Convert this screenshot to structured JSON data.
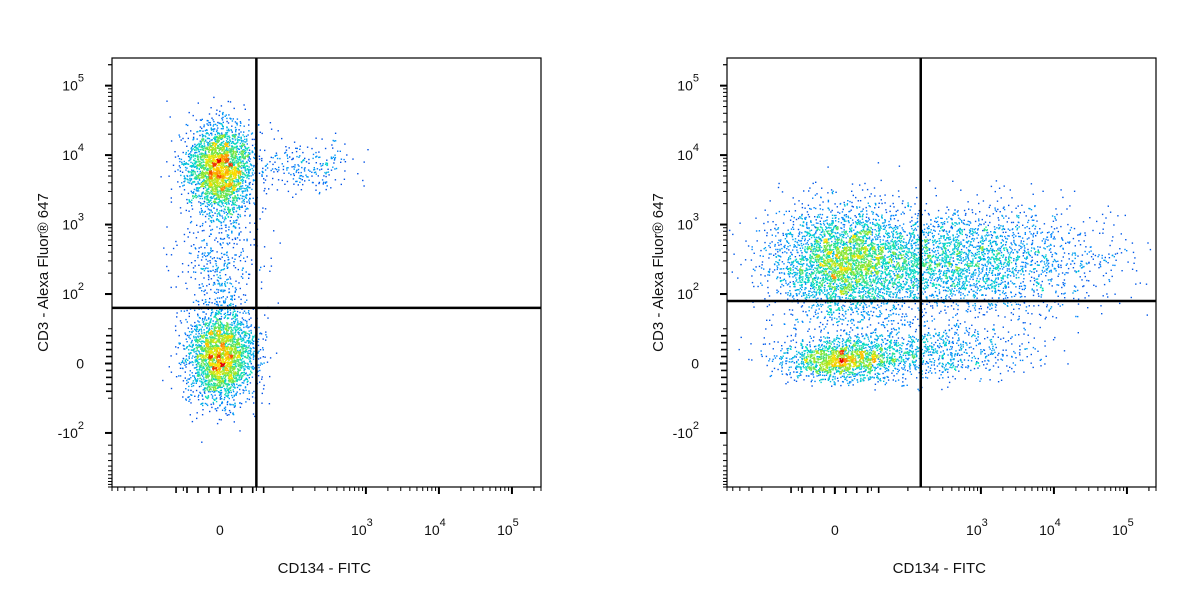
{
  "chart_data": [
    {
      "type": "scatter",
      "title": "",
      "xlabel": "CD134 - FITC",
      "ylabel": "CD3 - Alexa Fluor® 647",
      "x_scale": "biexponential",
      "y_scale": "biexponential",
      "xlim": [
        -300,
        250000
      ],
      "ylim": [
        -600,
        250000
      ],
      "x_ticks": [
        {
          "value": 0,
          "base": "0",
          "exp": ""
        },
        {
          "value": 1000,
          "base": "10",
          "exp": "3"
        },
        {
          "value": 10000,
          "base": "10",
          "exp": "4"
        },
        {
          "value": 100000,
          "base": "10",
          "exp": "5"
        }
      ],
      "y_ticks": [
        {
          "value": 100000,
          "base": "10",
          "exp": "5"
        },
        {
          "value": 10000,
          "base": "10",
          "exp": "4"
        },
        {
          "value": 1000,
          "base": "10",
          "exp": "3"
        },
        {
          "value": 100,
          "base": "10",
          "exp": "2"
        },
        {
          "value": 0,
          "base": "0",
          "exp": ""
        },
        {
          "value": -100,
          "base": "-10",
          "exp": "2"
        }
      ],
      "quadrant_gate": {
        "x": 50,
        "y": 80
      },
      "populations": [
        {
          "x": 0,
          "y": 6500,
          "spread": "dense"
        },
        {
          "x": 0,
          "y": 10,
          "spread": "dense"
        },
        {
          "x": 0,
          "y": 300,
          "spread": "sparse"
        },
        {
          "x": 150,
          "y": 7000,
          "spread": "sparse"
        }
      ],
      "grid": false,
      "legend": "none"
    },
    {
      "type": "scatter",
      "title": "",
      "xlabel": "CD134 - FITC",
      "ylabel": "CD3 - Alexa Fluor® 647",
      "x_scale": "biexponential",
      "y_scale": "biexponential",
      "xlim": [
        -300,
        250000
      ],
      "ylim": [
        -600,
        250000
      ],
      "x_ticks": [
        {
          "value": 0,
          "base": "0",
          "exp": ""
        },
        {
          "value": 1000,
          "base": "10",
          "exp": "3"
        },
        {
          "value": 10000,
          "base": "10",
          "exp": "4"
        },
        {
          "value": 100000,
          "base": "10",
          "exp": "5"
        }
      ],
      "y_ticks": [
        {
          "value": 100000,
          "base": "10",
          "exp": "5"
        },
        {
          "value": 10000,
          "base": "10",
          "exp": "4"
        },
        {
          "value": 1000,
          "base": "10",
          "exp": "3"
        },
        {
          "value": 100,
          "base": "10",
          "exp": "2"
        },
        {
          "value": 0,
          "base": "0",
          "exp": ""
        },
        {
          "value": -100,
          "base": "-10",
          "exp": "2"
        }
      ],
      "quadrant_gate": {
        "x": 150,
        "y": 90
      },
      "populations": [
        {
          "x": 10,
          "y": 280,
          "spread": "dense"
        },
        {
          "x": 400,
          "y": 300,
          "spread": "wide"
        },
        {
          "x": 10,
          "y": 5,
          "spread": "dense"
        },
        {
          "x": 150,
          "y": 20,
          "spread": "sparse"
        }
      ],
      "grid": false,
      "legend": "none"
    }
  ]
}
